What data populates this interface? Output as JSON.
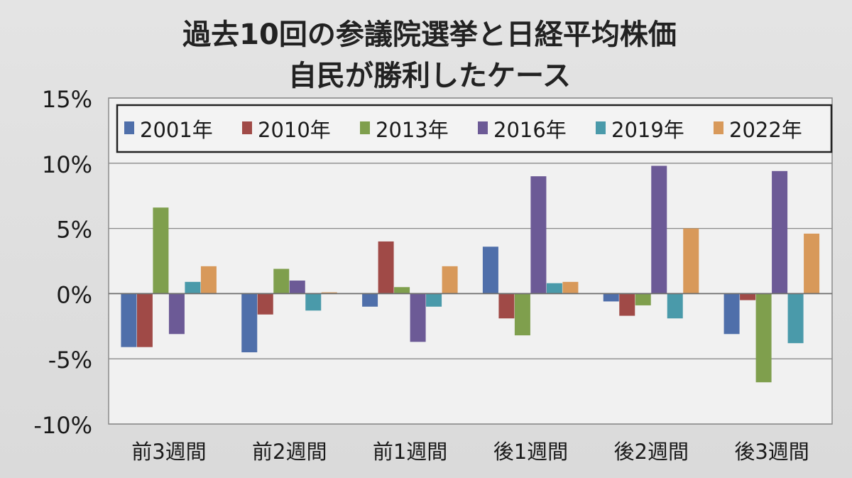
{
  "chart_data": {
    "type": "bar",
    "title": "過去10回の参議院選挙と日経平均株価",
    "subtitle": "自民が勝利したケース",
    "categories": [
      "前3週間",
      "前2週間",
      "前1週間",
      "後1週間",
      "後2週間",
      "後3週間"
    ],
    "series": [
      {
        "name": "2001年",
        "color": "#4f6faa",
        "values": [
          -4.1,
          -4.5,
          -1.0,
          3.6,
          -0.6,
          -3.1
        ]
      },
      {
        "name": "2010年",
        "color": "#a04a47",
        "values": [
          -4.1,
          -1.6,
          4.0,
          -1.9,
          -1.7,
          -0.5
        ]
      },
      {
        "name": "2013年",
        "color": "#7f9f4d",
        "values": [
          6.6,
          1.9,
          0.5,
          -3.2,
          -0.9,
          -6.8
        ]
      },
      {
        "name": "2016年",
        "color": "#6c5a96",
        "values": [
          -3.1,
          1.0,
          -3.7,
          9.0,
          9.8,
          9.4
        ]
      },
      {
        "name": "2019年",
        "color": "#4a9aaa",
        "values": [
          0.9,
          -1.3,
          -1.0,
          0.8,
          -1.9,
          -3.8
        ]
      },
      {
        "name": "2022年",
        "color": "#d8995a",
        "values": [
          2.1,
          0.1,
          2.1,
          0.9,
          5.0,
          4.6
        ]
      }
    ],
    "ylim": [
      -10,
      15
    ],
    "yticks": [
      -10,
      -5,
      0,
      5,
      10,
      15
    ],
    "ytick_labels": [
      "-10%",
      "-5%",
      "0%",
      "5%",
      "10%",
      "15%"
    ],
    "grid": true,
    "legend_position": "top"
  }
}
